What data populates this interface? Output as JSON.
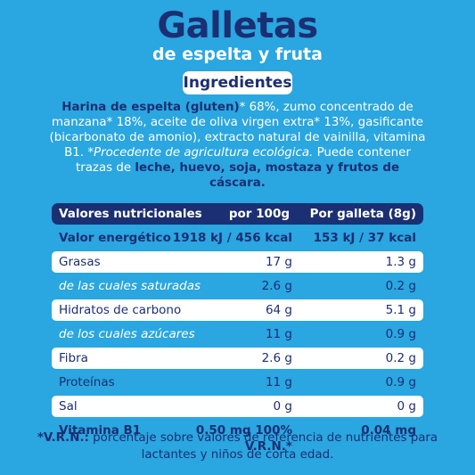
{
  "header": {
    "title": "Galletas",
    "subtitle": "de espelta y fruta"
  },
  "ingredients": {
    "badge": "Ingredientes",
    "p1_bold": "Harina de espelta (gluten)",
    "p1_rest": "* 68%, zumo concentrado de manzana* 18%, aceite de oliva virgen extra* 13%, gasificante (bicarbonato de amonio), extracto natural de vainilla, vitamina B1.",
    "p1_eco": "*Procedente de agricultura ecológica.",
    "p2_start": "Puede contener trazas de",
    "p2_allergens": "leche, huevo, soja, mostaza y frutos de cáscara."
  },
  "nutrition": {
    "headers": {
      "label": "Valores nutricionales",
      "per100": "por 100g",
      "perunit": "Por galleta (8g)"
    },
    "rows": [
      {
        "label": "Valor energético",
        "per100": "1918 kJ / 456 kcal",
        "perunit": "153 kJ / 37 kcal"
      },
      {
        "label": "Grasas",
        "per100": "17 g",
        "perunit": "1.3 g"
      },
      {
        "label": "de las cuales saturadas",
        "per100": "2.6 g",
        "perunit": "0.2 g"
      },
      {
        "label": "Hidratos de carbono",
        "per100": "64 g",
        "perunit": "5.1 g"
      },
      {
        "label": "de los cuales azúcares",
        "per100": "11 g",
        "perunit": "0.9 g"
      },
      {
        "label": "Fibra",
        "per100": "2.6 g",
        "perunit": "0.2 g"
      },
      {
        "label": "Proteínas",
        "per100": "11 g",
        "perunit": "0.9 g"
      },
      {
        "label": "Sal",
        "per100": "0 g",
        "perunit": "0 g"
      }
    ],
    "vitamin": {
      "label": "Vitamina B1",
      "per100": "0.50 mg 100%",
      "vrn": "V.R.N.*",
      "perunit": "0.04 mg"
    }
  },
  "footnote": {
    "prefix": "*V.R.N.:",
    "text": "porcentaje sobre valores de referencia de nutrientes para lactantes y niños de corta edad."
  }
}
